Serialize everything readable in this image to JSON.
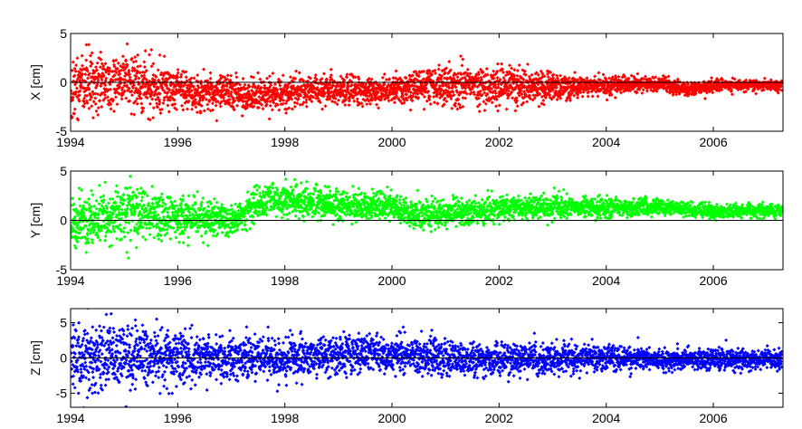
{
  "chart_data": [
    {
      "type": "scatter",
      "ylabel": "X [cm]",
      "ylim": [
        -5,
        5
      ],
      "yticks": [
        -5,
        0,
        5
      ],
      "xlim": [
        1994,
        2007.3
      ],
      "xticks": [
        1994,
        1996,
        1998,
        2000,
        2002,
        2004,
        2006
      ],
      "color": "#ff0000",
      "zero_line": true,
      "grid": false,
      "trend": [
        [
          1994,
          -0.3
        ],
        [
          1995,
          0.1
        ],
        [
          1996,
          -0.8
        ],
        [
          1997.5,
          -1.3
        ],
        [
          1998.5,
          -0.8
        ],
        [
          2000,
          -0.7
        ],
        [
          2001,
          -0.2
        ],
        [
          2002,
          -0.4
        ],
        [
          2003,
          -0.5
        ],
        [
          2004,
          -0.3
        ],
        [
          2005,
          -0.1
        ],
        [
          2005.5,
          -0.8
        ],
        [
          2006,
          -0.3
        ],
        [
          2007.2,
          -0.3
        ]
      ],
      "spread": [
        [
          1994,
          2.2
        ],
        [
          1995.5,
          1.8
        ],
        [
          1996.5,
          1.2
        ],
        [
          1998,
          1.0
        ],
        [
          2000,
          0.9
        ],
        [
          2001,
          1.3
        ],
        [
          2002.5,
          1.2
        ],
        [
          2003.5,
          0.7
        ],
        [
          2005,
          0.45
        ],
        [
          2007.2,
          0.35
        ]
      ]
    },
    {
      "type": "scatter",
      "ylabel": "Y [cm]",
      "ylim": [
        -5,
        5
      ],
      "yticks": [
        -5,
        0,
        5
      ],
      "xlim": [
        1994,
        2007.3
      ],
      "xticks": [
        1994,
        1996,
        1998,
        2000,
        2002,
        2004,
        2006
      ],
      "color": "#00ff00",
      "zero_line": true,
      "grid": false,
      "trend": [
        [
          1994,
          -0.3
        ],
        [
          1995,
          0.8
        ],
        [
          1996,
          0.4
        ],
        [
          1997,
          0.0
        ],
        [
          1997.7,
          2.2
        ],
        [
          1999,
          1.6
        ],
        [
          2000,
          1.4
        ],
        [
          2000.5,
          0.5
        ],
        [
          2002,
          1.2
        ],
        [
          2003,
          1.3
        ],
        [
          2004,
          1.3
        ],
        [
          2005,
          1.4
        ],
        [
          2006,
          0.9
        ],
        [
          2007.2,
          1.0
        ]
      ],
      "spread": [
        [
          1994,
          2.0
        ],
        [
          1995.5,
          1.6
        ],
        [
          1997,
          1.1
        ],
        [
          1999,
          1.0
        ],
        [
          2001,
          0.9
        ],
        [
          2003,
          0.8
        ],
        [
          2005,
          0.5
        ],
        [
          2007.2,
          0.45
        ]
      ]
    },
    {
      "type": "scatter",
      "ylabel": "Z [cm]",
      "ylim": [
        -7,
        7
      ],
      "yticks": [
        -5,
        0,
        5
      ],
      "xlim": [
        1994,
        2007.3
      ],
      "xticks": [
        1994,
        1996,
        1998,
        2000,
        2002,
        2004,
        2006
      ],
      "color": "#0000ff",
      "zero_line": true,
      "grid": false,
      "trend": [
        [
          1994,
          -0.5
        ],
        [
          1995,
          0.3
        ],
        [
          1996,
          0.0
        ],
        [
          1998,
          -0.2
        ],
        [
          1999.5,
          0.8
        ],
        [
          2000.5,
          0.2
        ],
        [
          2002,
          -0.3
        ],
        [
          2003.5,
          0.0
        ],
        [
          2005,
          -0.2
        ],
        [
          2007.2,
          -0.2
        ]
      ],
      "spread": [
        [
          1994,
          3.5
        ],
        [
          1995.5,
          2.8
        ],
        [
          1997,
          1.9
        ],
        [
          1999,
          1.8
        ],
        [
          2001,
          1.6
        ],
        [
          2002.5,
          1.5
        ],
        [
          2004,
          1.2
        ],
        [
          2005.5,
          1.0
        ],
        [
          2007.2,
          0.9
        ]
      ]
    }
  ]
}
